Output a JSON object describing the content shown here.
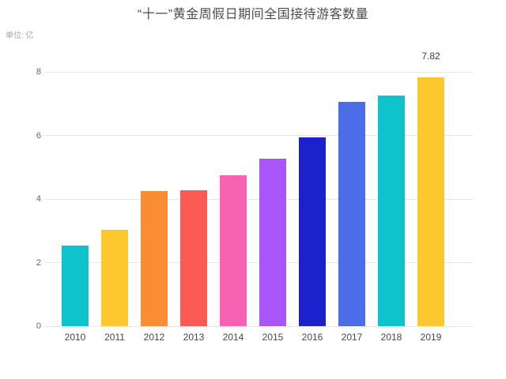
{
  "chart_data": {
    "type": "bar",
    "title": "“十一”黄金周假日期间全国接待游客数量",
    "ylabel": "单位: 亿",
    "xlabel": "",
    "categories": [
      "2010",
      "2011",
      "2012",
      "2013",
      "2014",
      "2015",
      "2016",
      "2017",
      "2018",
      "2019"
    ],
    "values": [
      2.54,
      3.02,
      4.25,
      4.28,
      4.75,
      5.26,
      5.93,
      7.05,
      7.26,
      7.82
    ],
    "bar_colors": [
      "#0fc3cd",
      "#fdc72e",
      "#fa8c34",
      "#fc5a55",
      "#f763b2",
      "#a855fa",
      "#1b21cb",
      "#4d6ce8",
      "#0fc3cd",
      "#fdc72e"
    ],
    "value_labels": [
      "",
      "",
      "",
      "",
      "",
      "",
      "",
      "",
      "",
      "7.82"
    ],
    "yticks": [
      0,
      2,
      4,
      6,
      8
    ],
    "ylim": [
      0,
      8.6
    ],
    "grid": true,
    "legend": "none",
    "theme": {
      "background": "#ffffff",
      "title_color": "#4d4d4d",
      "unit_label_color": "#a6a6a6",
      "gridline_color": "#e8e8e8",
      "ytick_color": "#666666",
      "xtick_color": "#474747",
      "value_label_color": "#3c3c3c"
    }
  }
}
